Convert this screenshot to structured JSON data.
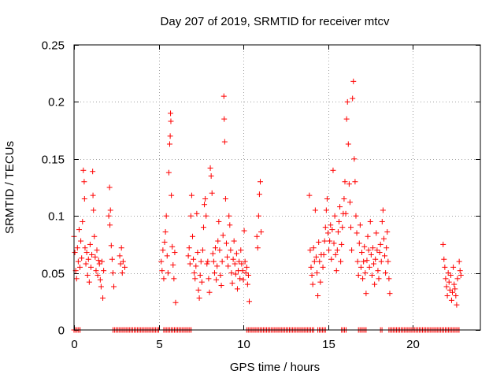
{
  "chart_data": {
    "type": "scatter",
    "title": "Day 207 of 2019, SRMTID for receiver mtcv",
    "xlabel": "GPS time / hours",
    "ylabel": "SRMTID / TECUs",
    "xlim": [
      0,
      24
    ],
    "ylim": [
      0,
      0.25
    ],
    "xticks": [
      0,
      5,
      10,
      15,
      20
    ],
    "xtick_labels": [
      "0",
      "5",
      "10",
      "15",
      "20"
    ],
    "yticks": [
      0,
      0.05,
      0.1,
      0.15,
      0.2,
      0.25
    ],
    "ytick_labels": [
      "0",
      "0.05",
      "0.1",
      "0.15",
      "0.2",
      "0.25"
    ],
    "grid": true,
    "marker": "+",
    "color": "#ff0000",
    "series": [
      {
        "name": "SRMTID",
        "points": [
          [
            0.0,
            0.082
          ],
          [
            0.05,
            0.068
          ],
          [
            0.1,
            0.052
          ],
          [
            0.15,
            0.045
          ],
          [
            0.2,
            0.072
          ],
          [
            0.25,
            0.06
          ],
          [
            0.3,
            0.088
          ],
          [
            0.35,
            0.055
          ],
          [
            0.4,
            0.078
          ],
          [
            0.45,
            0.063
          ],
          [
            0.5,
            0.095
          ],
          [
            0.55,
            0.14
          ],
          [
            0.6,
            0.13
          ],
          [
            0.62,
            0.115
          ],
          [
            0.65,
            0.072
          ],
          [
            0.7,
            0.058
          ],
          [
            0.75,
            0.068
          ],
          [
            0.8,
            0.048
          ],
          [
            0.85,
            0.062
          ],
          [
            0.9,
            0.042
          ],
          [
            0.95,
            0.075
          ],
          [
            1.0,
            0.055
          ],
          [
            1.05,
            0.066
          ],
          [
            1.1,
            0.139
          ],
          [
            1.12,
            0.118
          ],
          [
            1.15,
            0.105
          ],
          [
            1.2,
            0.082
          ],
          [
            1.25,
            0.064
          ],
          [
            1.3,
            0.052
          ],
          [
            1.35,
            0.07
          ],
          [
            1.4,
            0.048
          ],
          [
            1.45,
            0.061
          ],
          [
            1.5,
            0.058
          ],
          [
            1.55,
            0.044
          ],
          [
            1.6,
            0.038
          ],
          [
            1.65,
            0.06
          ],
          [
            1.7,
            0.028
          ],
          [
            1.75,
            0.052
          ],
          [
            2.05,
            0.1
          ],
          [
            2.1,
            0.125
          ],
          [
            2.12,
            0.092
          ],
          [
            2.15,
            0.105
          ],
          [
            2.2,
            0.074
          ],
          [
            2.25,
            0.062
          ],
          [
            2.3,
            0.05
          ],
          [
            2.35,
            0.038
          ],
          [
            2.7,
            0.065
          ],
          [
            2.75,
            0.058
          ],
          [
            2.8,
            0.072
          ],
          [
            2.85,
            0.05
          ],
          [
            2.9,
            0.06
          ],
          [
            3.0,
            0.055
          ],
          [
            5.15,
            0.06
          ],
          [
            5.2,
            0.052
          ],
          [
            5.25,
            0.07
          ],
          [
            5.3,
            0.045
          ],
          [
            5.35,
            0.077
          ],
          [
            5.4,
            0.086
          ],
          [
            5.45,
            0.1
          ],
          [
            5.5,
            0.065
          ],
          [
            5.55,
            0.05
          ],
          [
            5.6,
            0.138
          ],
          [
            5.65,
            0.163
          ],
          [
            5.68,
            0.17
          ],
          [
            5.7,
            0.19
          ],
          [
            5.72,
            0.183
          ],
          [
            5.75,
            0.118
          ],
          [
            5.8,
            0.073
          ],
          [
            5.85,
            0.057
          ],
          [
            5.9,
            0.045
          ],
          [
            5.95,
            0.068
          ],
          [
            6.0,
            0.024
          ],
          [
            6.75,
            0.065
          ],
          [
            6.8,
            0.072
          ],
          [
            6.85,
            0.058
          ],
          [
            6.9,
            0.1
          ],
          [
            6.95,
            0.118
          ],
          [
            7.0,
            0.082
          ],
          [
            7.05,
            0.062
          ],
          [
            7.1,
            0.05
          ],
          [
            7.15,
            0.045
          ],
          [
            7.2,
            0.056
          ],
          [
            7.25,
            0.102
          ],
          [
            7.3,
            0.068
          ],
          [
            7.35,
            0.035
          ],
          [
            7.4,
            0.028
          ],
          [
            7.45,
            0.048
          ],
          [
            7.5,
            0.06
          ],
          [
            7.55,
            0.042
          ],
          [
            7.6,
            0.07
          ],
          [
            7.65,
            0.09
          ],
          [
            7.7,
            0.11
          ],
          [
            7.75,
            0.115
          ],
          [
            7.8,
            0.1
          ],
          [
            7.85,
            0.058
          ],
          [
            7.9,
            0.06
          ],
          [
            7.95,
            0.045
          ],
          [
            8.0,
            0.033
          ],
          [
            8.05,
            0.142
          ],
          [
            8.1,
            0.135
          ],
          [
            8.15,
            0.12
          ],
          [
            8.2,
            0.067
          ],
          [
            8.25,
            0.06
          ],
          [
            8.3,
            0.05
          ],
          [
            8.35,
            0.072
          ],
          [
            8.4,
            0.044
          ],
          [
            8.45,
            0.056
          ],
          [
            8.5,
            0.078
          ],
          [
            8.55,
            0.095
          ],
          [
            8.6,
            0.07
          ],
          [
            8.65,
            0.048
          ],
          [
            8.7,
            0.039
          ],
          [
            8.75,
            0.06
          ],
          [
            8.8,
            0.083
          ],
          [
            8.85,
            0.205
          ],
          [
            8.87,
            0.185
          ],
          [
            8.9,
            0.165
          ],
          [
            8.95,
            0.115
          ],
          [
            9.0,
            0.076
          ],
          [
            9.05,
            0.064
          ],
          [
            9.1,
            0.056
          ],
          [
            9.15,
            0.1
          ],
          [
            9.2,
            0.092
          ],
          [
            9.25,
            0.07
          ],
          [
            9.3,
            0.05
          ],
          [
            9.35,
            0.041
          ],
          [
            9.4,
            0.062
          ],
          [
            9.45,
            0.078
          ],
          [
            9.5,
            0.058
          ],
          [
            9.55,
            0.049
          ],
          [
            9.6,
            0.067
          ],
          [
            9.65,
            0.036
          ],
          [
            9.7,
            0.052
          ],
          [
            9.75,
            0.06
          ],
          [
            9.8,
            0.045
          ],
          [
            9.85,
            0.07
          ],
          [
            9.9,
            0.058
          ],
          [
            9.95,
            0.052
          ],
          [
            10.0,
            0.044
          ],
          [
            10.05,
            0.087
          ],
          [
            10.1,
            0.06
          ],
          [
            10.15,
            0.05
          ],
          [
            10.2,
            0.055
          ],
          [
            10.25,
            0.04
          ],
          [
            10.3,
            0.048
          ],
          [
            10.35,
            0.025
          ],
          [
            10.8,
            0.082
          ],
          [
            10.85,
            0.072
          ],
          [
            10.9,
            0.1
          ],
          [
            10.95,
            0.119
          ],
          [
            11.0,
            0.13
          ],
          [
            11.05,
            0.086
          ],
          [
            13.9,
            0.118
          ],
          [
            13.95,
            0.07
          ],
          [
            14.0,
            0.055
          ],
          [
            14.05,
            0.048
          ],
          [
            14.1,
            0.04
          ],
          [
            14.15,
            0.072
          ],
          [
            14.2,
            0.06
          ],
          [
            14.25,
            0.105
          ],
          [
            14.3,
            0.064
          ],
          [
            14.35,
            0.05
          ],
          [
            14.4,
            0.03
          ],
          [
            14.45,
            0.077
          ],
          [
            14.5,
            0.06
          ],
          [
            14.55,
            0.042
          ],
          [
            14.6,
            0.066
          ],
          [
            14.7,
            0.055
          ],
          [
            14.75,
            0.066
          ],
          [
            14.8,
            0.078
          ],
          [
            14.85,
            0.09
          ],
          [
            14.9,
            0.105
          ],
          [
            14.95,
            0.115
          ],
          [
            15.0,
            0.085
          ],
          [
            15.05,
            0.07
          ],
          [
            15.1,
            0.078
          ],
          [
            15.15,
            0.092
          ],
          [
            15.2,
            0.062
          ],
          [
            15.25,
            0.088
          ],
          [
            15.3,
            0.14
          ],
          [
            15.35,
            0.076
          ],
          [
            15.4,
            0.1
          ],
          [
            15.45,
            0.066
          ],
          [
            15.5,
            0.052
          ],
          [
            15.55,
            0.07
          ],
          [
            15.6,
            0.086
          ],
          [
            15.65,
            0.095
          ],
          [
            15.7,
            0.108
          ],
          [
            15.75,
            0.06
          ],
          [
            15.8,
            0.075
          ],
          [
            15.85,
            0.09
          ],
          [
            15.9,
            0.102
          ],
          [
            15.95,
            0.115
          ],
          [
            16.0,
            0.13
          ],
          [
            16.05,
            0.102
          ],
          [
            16.1,
            0.185
          ],
          [
            16.15,
            0.2
          ],
          [
            16.2,
            0.163
          ],
          [
            16.25,
            0.128
          ],
          [
            16.3,
            0.112
          ],
          [
            16.35,
            0.09
          ],
          [
            16.4,
            0.07
          ],
          [
            16.45,
            0.203
          ],
          [
            16.5,
            0.218
          ],
          [
            16.55,
            0.15
          ],
          [
            16.6,
            0.13
          ],
          [
            16.65,
            0.1
          ],
          [
            16.7,
            0.085
          ],
          [
            16.75,
            0.06
          ],
          [
            16.8,
            0.048
          ],
          [
            16.85,
            0.076
          ],
          [
            16.9,
            0.092
          ],
          [
            16.95,
            0.055
          ],
          [
            17.0,
            0.068
          ],
          [
            17.05,
            0.045
          ],
          [
            17.1,
            0.06
          ],
          [
            17.15,
            0.073
          ],
          [
            17.2,
            0.05
          ],
          [
            17.25,
            0.032
          ],
          [
            17.3,
            0.061
          ],
          [
            17.35,
            0.082
          ],
          [
            17.4,
            0.07
          ],
          [
            17.45,
            0.055
          ],
          [
            17.5,
            0.095
          ],
          [
            17.55,
            0.066
          ],
          [
            17.6,
            0.048
          ],
          [
            17.65,
            0.072
          ],
          [
            17.7,
            0.058
          ],
          [
            17.75,
            0.04
          ],
          [
            17.8,
            0.062
          ],
          [
            17.85,
            0.085
          ],
          [
            17.9,
            0.07
          ],
          [
            17.95,
            0.052
          ],
          [
            18.0,
            0.045
          ],
          [
            18.05,
            0.068
          ],
          [
            18.1,
            0.075
          ],
          [
            18.15,
            0.06
          ],
          [
            18.2,
            0.095
          ],
          [
            18.25,
            0.105
          ],
          [
            18.3,
            0.08
          ],
          [
            18.35,
            0.065
          ],
          [
            18.4,
            0.05
          ],
          [
            18.45,
            0.072
          ],
          [
            18.5,
            0.086
          ],
          [
            18.55,
            0.06
          ],
          [
            18.6,
            0.045
          ],
          [
            18.65,
            0.032
          ],
          [
            21.8,
            0.075
          ],
          [
            21.85,
            0.062
          ],
          [
            21.9,
            0.055
          ],
          [
            21.95,
            0.045
          ],
          [
            22.0,
            0.038
          ],
          [
            22.05,
            0.03
          ],
          [
            22.1,
            0.05
          ],
          [
            22.15,
            0.042
          ],
          [
            22.2,
            0.035
          ],
          [
            22.25,
            0.048
          ],
          [
            22.3,
            0.026
          ],
          [
            22.35,
            0.033
          ],
          [
            22.4,
            0.055
          ],
          [
            22.45,
            0.04
          ],
          [
            22.5,
            0.036
          ],
          [
            22.55,
            0.03
          ],
          [
            22.6,
            0.022
          ],
          [
            22.65,
            0.045
          ],
          [
            22.75,
            0.06
          ],
          [
            22.8,
            0.052
          ],
          [
            22.85,
            0.048
          ]
        ],
        "zero_segments": [
          [
            0.0,
            0.4
          ],
          [
            2.3,
            5.0
          ],
          [
            5.3,
            7.0
          ],
          [
            10.2,
            14.2
          ],
          [
            14.4,
            14.9
          ],
          [
            15.8,
            16.1
          ],
          [
            16.8,
            17.3
          ],
          [
            18.1,
            18.2
          ],
          [
            18.6,
            22.8
          ]
        ]
      }
    ]
  }
}
